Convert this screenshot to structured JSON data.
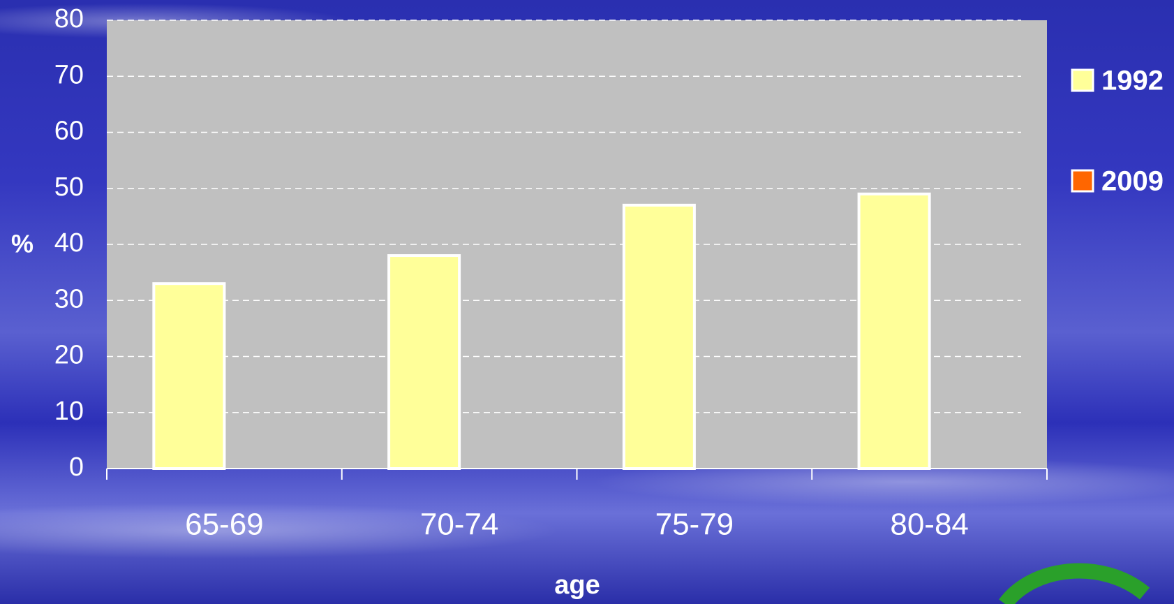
{
  "chart_data": {
    "type": "bar",
    "categories": [
      "65-69",
      "70-74",
      "75-79",
      "80-84"
    ],
    "series": [
      {
        "name": "1992",
        "color": "#ffff99",
        "values": [
          33,
          38,
          47,
          49
        ]
      },
      {
        "name": "2009",
        "color": "#ff6600",
        "values": [
          null,
          null,
          null,
          null
        ]
      }
    ],
    "x_label": "age",
    "y_label": "%",
    "ylim": [
      0,
      80
    ],
    "yticks": [
      0,
      10,
      20,
      30,
      40,
      50,
      60,
      70,
      80
    ],
    "grid": true,
    "legend": "right"
  }
}
